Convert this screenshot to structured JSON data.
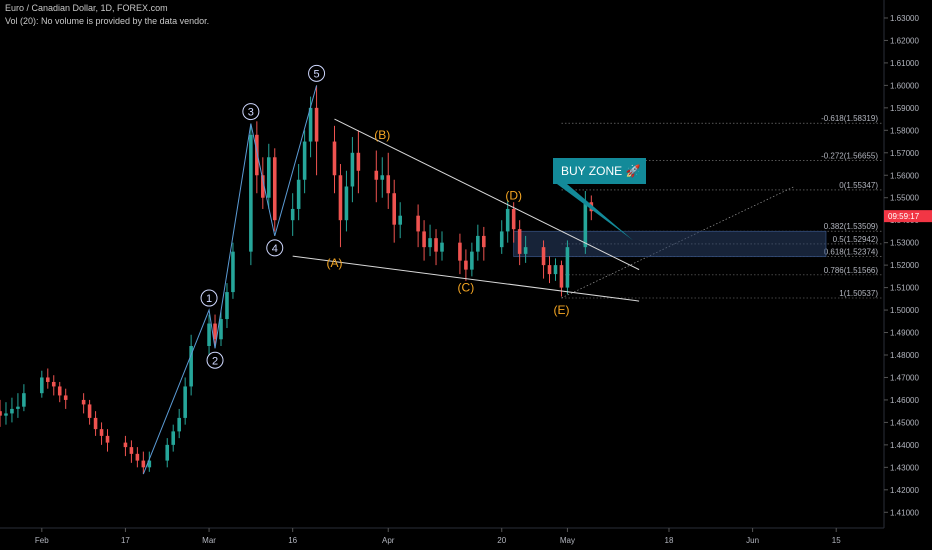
{
  "header": {
    "title": "Euro / Canadian Dollar, 1D, FOREX.com",
    "volume_note": "Vol (20): No volume is provided by the data vendor."
  },
  "price_tag": "09:59:17",
  "colors": {
    "background": "#000000",
    "up": "#26a69a",
    "down": "#ef5350",
    "wave_line": "#5b9bd5",
    "trendline": "#d9d9d9",
    "zone_fill": "#2a3f66",
    "callout": "#138a99",
    "wave_numbers": "#cfd8ff",
    "wave_letters": "#f5a623",
    "price_tag": "#f23645"
  },
  "chart_data": {
    "type": "candlestick",
    "symbol": "Euro / Canadian Dollar",
    "timeframe": "1D",
    "ylim": [
      1.403,
      1.638
    ],
    "y_ticks": [
      1.41,
      1.42,
      1.43,
      1.44,
      1.45,
      1.46,
      1.47,
      1.48,
      1.49,
      1.5,
      1.51,
      1.52,
      1.53,
      1.54,
      1.55,
      1.56,
      1.57,
      1.58,
      1.59,
      1.6,
      1.61,
      1.62,
      1.63
    ],
    "x_start": "2020-01-27",
    "x_end": "2020-06-23",
    "x_ticks": [
      {
        "label": "Feb",
        "date": "2020-02-03"
      },
      {
        "label": "17",
        "date": "2020-02-17"
      },
      {
        "label": "Mar",
        "date": "2020-03-02"
      },
      {
        "label": "16",
        "date": "2020-03-16"
      },
      {
        "label": "Apr",
        "date": "2020-04-01"
      },
      {
        "label": "20",
        "date": "2020-04-20"
      },
      {
        "label": "May",
        "date": "2020-05-01"
      },
      {
        "label": "18",
        "date": "2020-05-18"
      },
      {
        "label": "Jun",
        "date": "2020-06-01"
      },
      {
        "label": "15",
        "date": "2020-06-15"
      }
    ],
    "candles": [
      [
        "2020-01-27",
        1.455,
        1.453,
        1.448,
        1.46
      ],
      [
        "2020-01-28",
        1.453,
        1.454,
        1.449,
        1.459
      ],
      [
        "2020-01-29",
        1.454,
        1.456,
        1.45,
        1.461
      ],
      [
        "2020-01-30",
        1.456,
        1.457,
        1.452,
        1.463
      ],
      [
        "2020-01-31",
        1.457,
        1.463,
        1.455,
        1.467
      ],
      [
        "2020-02-03",
        1.463,
        1.47,
        1.461,
        1.473
      ],
      [
        "2020-02-04",
        1.47,
        1.468,
        1.465,
        1.474
      ],
      [
        "2020-02-05",
        1.468,
        1.466,
        1.462,
        1.471
      ],
      [
        "2020-02-06",
        1.466,
        1.462,
        1.459,
        1.468
      ],
      [
        "2020-02-07",
        1.462,
        1.46,
        1.456,
        1.465
      ],
      [
        "2020-02-10",
        1.46,
        1.458,
        1.454,
        1.463
      ],
      [
        "2020-02-11",
        1.458,
        1.452,
        1.449,
        1.46
      ],
      [
        "2020-02-12",
        1.452,
        1.447,
        1.444,
        1.455
      ],
      [
        "2020-02-13",
        1.447,
        1.444,
        1.44,
        1.45
      ],
      [
        "2020-02-14",
        1.444,
        1.441,
        1.437,
        1.447
      ],
      [
        "2020-02-17",
        1.441,
        1.439,
        1.435,
        1.444
      ],
      [
        "2020-02-18",
        1.439,
        1.436,
        1.432,
        1.442
      ],
      [
        "2020-02-19",
        1.436,
        1.433,
        1.43,
        1.439
      ],
      [
        "2020-02-20",
        1.433,
        1.43,
        1.427,
        1.437
      ],
      [
        "2020-02-21",
        1.43,
        1.433,
        1.428,
        1.437
      ],
      [
        "2020-02-24",
        1.433,
        1.44,
        1.43,
        1.443
      ],
      [
        "2020-02-25",
        1.44,
        1.446,
        1.437,
        1.449
      ],
      [
        "2020-02-26",
        1.446,
        1.452,
        1.443,
        1.456
      ],
      [
        "2020-02-27",
        1.452,
        1.466,
        1.449,
        1.47
      ],
      [
        "2020-02-28",
        1.466,
        1.484,
        1.462,
        1.489
      ],
      [
        "2020-03-02",
        1.484,
        1.494,
        1.48,
        1.498
      ],
      [
        "2020-03-03",
        1.494,
        1.487,
        1.483,
        1.498
      ],
      [
        "2020-03-04",
        1.487,
        1.496,
        1.484,
        1.5
      ],
      [
        "2020-03-05",
        1.496,
        1.508,
        1.492,
        1.512
      ],
      [
        "2020-03-06",
        1.508,
        1.526,
        1.505,
        1.53
      ],
      [
        "2020-03-09",
        1.526,
        1.578,
        1.52,
        1.583
      ],
      [
        "2020-03-10",
        1.578,
        1.56,
        1.552,
        1.584
      ],
      [
        "2020-03-11",
        1.56,
        1.55,
        1.545,
        1.568
      ],
      [
        "2020-03-12",
        1.55,
        1.568,
        1.545,
        1.574
      ],
      [
        "2020-03-13",
        1.568,
        1.54,
        1.535,
        1.572
      ],
      [
        "2020-03-16",
        1.54,
        1.545,
        1.533,
        1.552
      ],
      [
        "2020-03-17",
        1.545,
        1.558,
        1.54,
        1.565
      ],
      [
        "2020-03-18",
        1.558,
        1.575,
        1.552,
        1.58
      ],
      [
        "2020-03-19",
        1.575,
        1.59,
        1.568,
        1.595
      ],
      [
        "2020-03-20",
        1.59,
        1.575,
        1.56,
        1.6
      ],
      [
        "2020-03-23",
        1.575,
        1.56,
        1.552,
        1.582
      ],
      [
        "2020-03-24",
        1.56,
        1.54,
        1.528,
        1.565
      ],
      [
        "2020-03-25",
        1.54,
        1.555,
        1.535,
        1.562
      ],
      [
        "2020-03-26",
        1.555,
        1.57,
        1.548,
        1.577
      ],
      [
        "2020-03-27",
        1.57,
        1.562,
        1.552,
        1.58
      ],
      [
        "2020-03-30",
        1.562,
        1.558,
        1.548,
        1.571
      ],
      [
        "2020-03-31",
        1.558,
        1.56,
        1.55,
        1.568
      ],
      [
        "2020-04-01",
        1.56,
        1.552,
        1.545,
        1.57
      ],
      [
        "2020-04-02",
        1.552,
        1.538,
        1.53,
        1.558
      ],
      [
        "2020-04-03",
        1.538,
        1.542,
        1.532,
        1.548
      ],
      [
        "2020-04-06",
        1.542,
        1.535,
        1.528,
        1.547
      ],
      [
        "2020-04-07",
        1.535,
        1.528,
        1.522,
        1.54
      ],
      [
        "2020-04-08",
        1.528,
        1.532,
        1.524,
        1.538
      ],
      [
        "2020-04-09",
        1.532,
        1.526,
        1.52,
        1.536
      ],
      [
        "2020-04-10",
        1.526,
        1.53,
        1.522,
        1.535
      ],
      [
        "2020-04-13",
        1.53,
        1.522,
        1.516,
        1.534
      ],
      [
        "2020-04-14",
        1.522,
        1.518,
        1.513,
        1.527
      ],
      [
        "2020-04-15",
        1.518,
        1.526,
        1.515,
        1.53
      ],
      [
        "2020-04-16",
        1.526,
        1.533,
        1.522,
        1.538
      ],
      [
        "2020-04-17",
        1.533,
        1.528,
        1.522,
        1.537
      ],
      [
        "2020-04-20",
        1.528,
        1.535,
        1.525,
        1.54
      ],
      [
        "2020-04-21",
        1.535,
        1.545,
        1.53,
        1.549
      ],
      [
        "2020-04-22",
        1.545,
        1.536,
        1.53,
        1.548
      ],
      [
        "2020-04-23",
        1.536,
        1.525,
        1.52,
        1.54
      ],
      [
        "2020-04-24",
        1.525,
        1.528,
        1.521,
        1.533
      ],
      [
        "2020-04-27",
        1.528,
        1.52,
        1.514,
        1.531
      ],
      [
        "2020-04-28",
        1.52,
        1.516,
        1.512,
        1.524
      ],
      [
        "2020-04-29",
        1.516,
        1.52,
        1.513,
        1.523
      ],
      [
        "2020-04-30",
        1.52,
        1.51,
        1.506,
        1.522
      ],
      [
        "2020-05-01",
        1.51,
        1.528,
        1.507,
        1.531
      ],
      [
        "2020-05-04",
        1.528,
        1.548,
        1.525,
        1.553
      ],
      [
        "2020-05-05",
        1.548,
        1.544,
        1.54,
        1.551
      ]
    ],
    "elliott_wave": {
      "impulse_labels": [
        {
          "label": "1",
          "date": "2020-03-02",
          "price": 1.5,
          "pos": "above"
        },
        {
          "label": "2",
          "date": "2020-03-03",
          "price": 1.483,
          "pos": "below"
        },
        {
          "label": "3",
          "date": "2020-03-09",
          "price": 1.583,
          "pos": "above"
        },
        {
          "label": "4",
          "date": "2020-03-13",
          "price": 1.533,
          "pos": "below"
        },
        {
          "label": "5",
          "date": "2020-03-20",
          "price": 1.6,
          "pos": "above"
        }
      ],
      "impulse_path": [
        [
          "2020-02-20",
          1.427
        ],
        [
          "2020-03-02",
          1.5
        ],
        [
          "2020-03-03",
          1.483
        ],
        [
          "2020-03-09",
          1.583
        ],
        [
          "2020-03-13",
          1.533
        ],
        [
          "2020-03-20",
          1.6
        ]
      ],
      "correction_labels": [
        {
          "label": "(A)",
          "date": "2020-03-23",
          "price": 1.521
        },
        {
          "label": "(B)",
          "date": "2020-03-31",
          "price": 1.578
        },
        {
          "label": "(C)",
          "date": "2020-04-14",
          "price": 1.51
        },
        {
          "label": "(D)",
          "date": "2020-04-22",
          "price": 1.551
        },
        {
          "label": "(E)",
          "date": "2020-04-30",
          "price": 1.5
        }
      ],
      "upper_trendline": [
        [
          "2020-03-23",
          1.585
        ],
        [
          "2020-05-13",
          1.518
        ]
      ],
      "lower_trendline": [
        [
          "2020-03-16",
          1.524
        ],
        [
          "2020-05-13",
          1.504
        ]
      ]
    },
    "fibonacci": {
      "x_start": "2020-04-30",
      "x_end": "2020-06-23",
      "levels": [
        {
          "label": "-0.618(1.58319)",
          "price": 1.58319
        },
        {
          "label": "-0.272(1.56655)",
          "price": 1.56655
        },
        {
          "label": "0(1.55347)",
          "price": 1.55347
        },
        {
          "label": "0.382(1.53509)",
          "price": 1.53509
        },
        {
          "label": "0.5(1.52942)",
          "price": 1.52942
        },
        {
          "label": "0.618(1.52374)",
          "price": 1.52374
        },
        {
          "label": "0.786(1.51566)",
          "price": 1.51566
        },
        {
          "label": "1(1.50537)",
          "price": 1.50537
        }
      ],
      "fib_line": [
        [
          "2020-04-30",
          1.50537
        ],
        [
          "2020-06-08",
          1.555
        ]
      ]
    },
    "buy_zone": {
      "label": "BUY ZONE 🚀",
      "price_top": 1.53509,
      "price_bottom": 1.52374,
      "x_start": "2020-04-22",
      "x_end": "2020-06-23",
      "pointer": [
        "2020-05-12",
        1.531
      ]
    },
    "last_price": 1.5418
  }
}
